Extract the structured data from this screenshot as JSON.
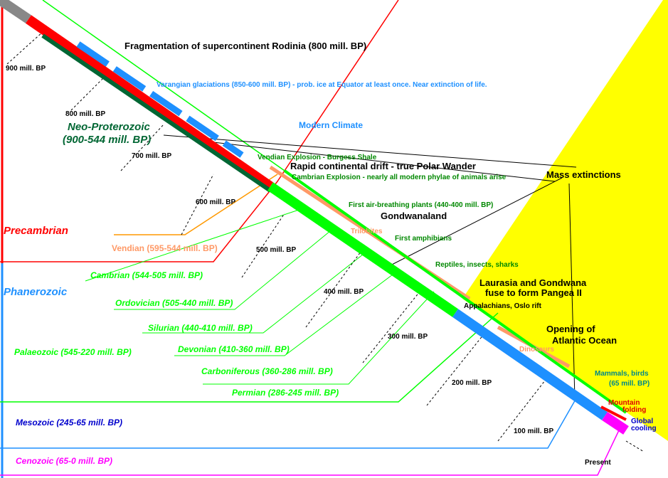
{
  "title": "Fragmentation of supercontinent Rodinia (800 mill. BP)",
  "time_marks": [
    "900 mill. BP",
    "800 mill. BP",
    "700 mill. BP",
    "600 mill. BP",
    "500 mill. BP",
    "400 mill. BP",
    "300 mill. BP",
    "200 mill. BP",
    "100 mill. BP",
    "Present"
  ],
  "eras": [
    "Precambrian",
    "Neo-Proterozoic",
    "(900-544 mill. BP)",
    "Vendian (595-544 mill. BP)",
    "Phanerozoic",
    "Palaeozoic (545-220 mill. BP)",
    "Cambrian (544-505 mill. BP)",
    "Ordovician (505-440 mill. BP)",
    "Silurian (440-410 mill. BP)",
    "Devonian (410-360 mill. BP)",
    "Carboniferous (360-286 mill. BP)",
    "Permian (286-245 mill. BP)",
    "Mesozoic (245-65 mill. BP)",
    "Cenozoic (65-0 mill. BP)"
  ],
  "events": [
    "Varangian glaciations (850-600 mill. BP) - prob. ice at Equator at least once.  Near extinction of life.",
    "Modern Climate",
    "Vendian Explosion - Burgess Shale",
    "Rapid continental drift - true Polar Wander",
    "Cambrian Explosion - nearly all modern phylae of animals arise",
    "Mass extinctions",
    "First air-breathing plants (440-400 mill. BP)",
    "Gondwanaland",
    "Trilobites",
    "First amphibians",
    "Reptiles, insects, sharks",
    "Laurasia and Gondwana",
    "fuse to form Pangea II",
    "Appalachians, Oslo rift",
    "Opening of",
    "Atlantic Ocean",
    "Dinosaurs",
    "Mammals, birds",
    "(65 mill. BP)",
    "Mountain",
    "folding",
    "Global",
    "cooling"
  ]
}
